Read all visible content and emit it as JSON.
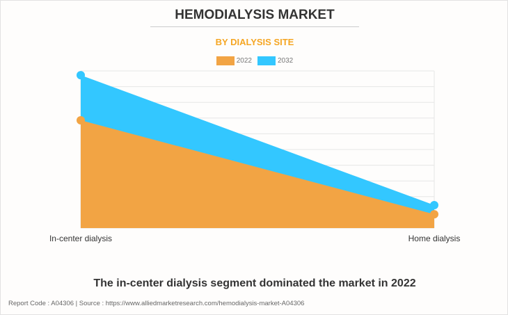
{
  "title": "HEMODIALYSIS MARKET",
  "subtitle": "BY DIALYSIS SITE",
  "caption": "The in-center dialysis segment dominated the market in 2022",
  "footer": "Report Code : A04306  |  Source : https://www.alliedmarketresearch.com/hemodialysis-market-A04306",
  "chart_data": {
    "type": "area",
    "categories": [
      "In-center dialysis",
      "Home dialysis"
    ],
    "series": [
      {
        "name": "2022",
        "color": "#f2a444",
        "values": [
          68.6,
          8.8
        ]
      },
      {
        "name": "2032",
        "color": "#33c7ff",
        "values": [
          97.3,
          14.6
        ]
      }
    ],
    "ylim": [
      0,
      100
    ],
    "grid": true,
    "y_tick_labels_shown": false,
    "legend": "top-center"
  }
}
